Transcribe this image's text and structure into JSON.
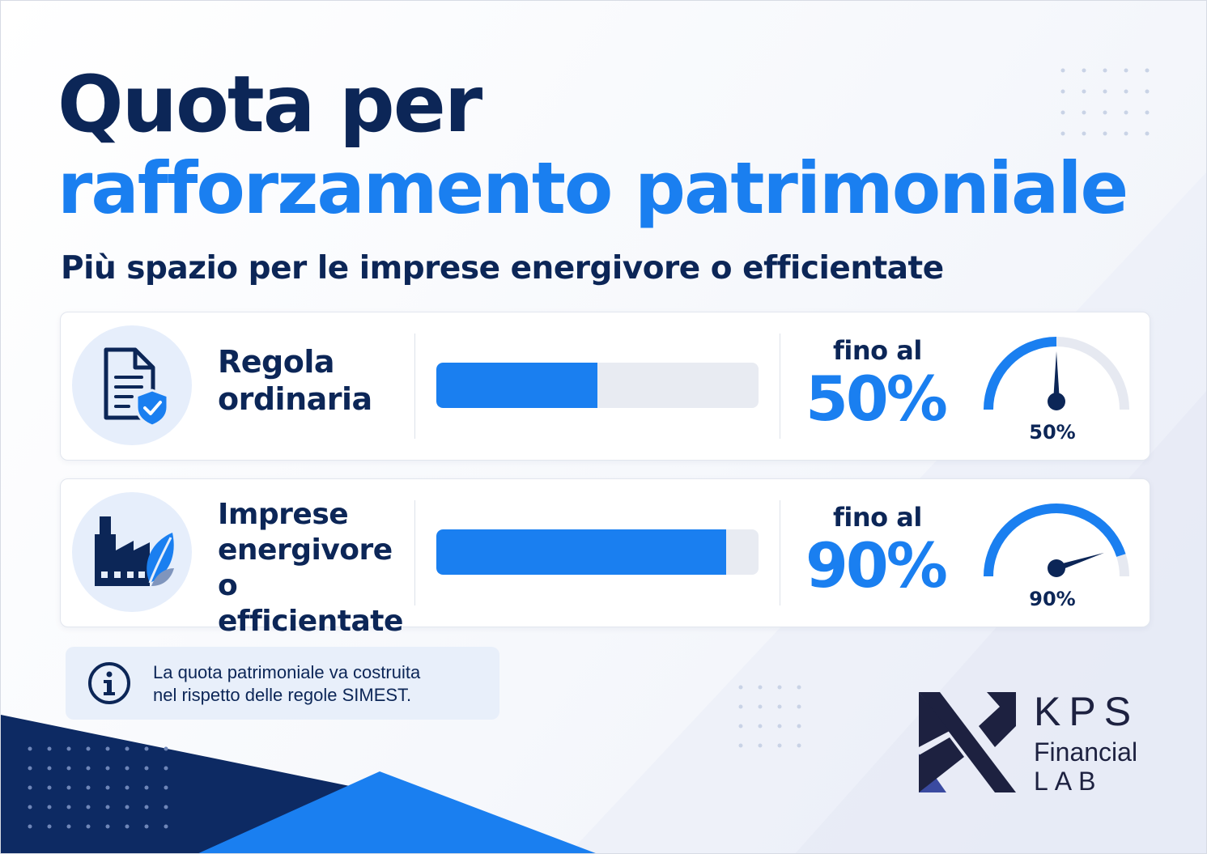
{
  "title_line1": "Quota per",
  "title_line2": "rafforzamento patrimoniale",
  "subtitle": "Più spazio per le imprese energivore o efficientate",
  "rows": [
    {
      "label": "Regola ordinaria",
      "icon": "document-shield-icon",
      "prefix": "fino al",
      "percent_text": "50%",
      "gauge_label": "50%",
      "value": 0.5
    },
    {
      "label": "Imprese energivore o efficientate",
      "icon": "factory-leaf-icon",
      "prefix": "fino al",
      "percent_text": "90%",
      "gauge_label": "90%",
      "value": 0.9
    }
  ],
  "note": {
    "icon": "info-icon",
    "text_line1": "La quota patrimoniale va costruita",
    "text_line2": "nel rispetto delle regole SIMEST."
  },
  "logo": {
    "line1": "KPS",
    "line2": "Financial",
    "line3": "LAB"
  },
  "colors": {
    "navy": "#0c2657",
    "accent": "#1a7ff0",
    "track": "#e8ebf2"
  }
}
